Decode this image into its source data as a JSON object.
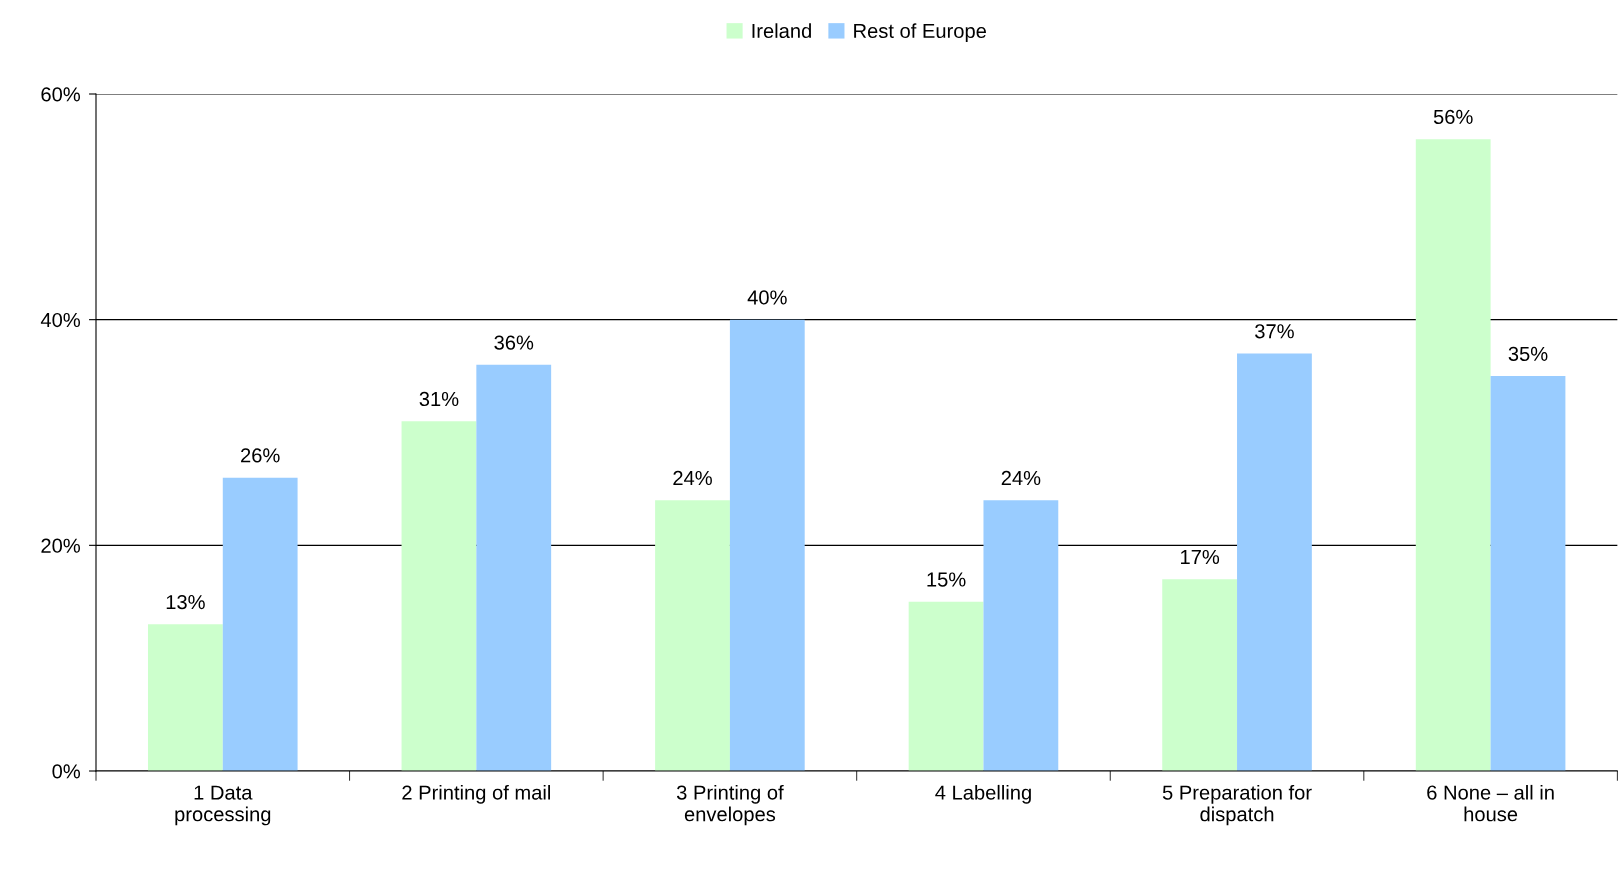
{
  "chart_data": {
    "type": "bar",
    "categories": [
      "1 Data\nprocessing",
      "2 Printing of mail",
      "3 Printing of\nenvelopes",
      "4 Labelling",
      "5 Preparation for\ndispatch",
      "6 None – all in\nhouse"
    ],
    "series": [
      {
        "name": "Ireland",
        "color": "#ccffcc",
        "values": [
          13,
          31,
          24,
          15,
          17,
          56
        ],
        "value_labels": [
          "13%",
          "31%",
          "24%",
          "15%",
          "17%",
          "56%"
        ]
      },
      {
        "name": "Rest of Europe",
        "color": "#99ccff",
        "values": [
          26,
          36,
          40,
          24,
          37,
          35
        ],
        "value_labels": [
          "26%",
          "36%",
          "40%",
          "24%",
          "37%",
          "35%"
        ]
      }
    ],
    "ylim": [
      0,
      60
    ],
    "yticks": [
      {
        "value": 0,
        "label": "0%"
      },
      {
        "value": 20,
        "label": "20%"
      },
      {
        "value": 40,
        "label": "40%"
      },
      {
        "value": 60,
        "label": "60%"
      }
    ],
    "grid": "y",
    "legend": "top"
  }
}
